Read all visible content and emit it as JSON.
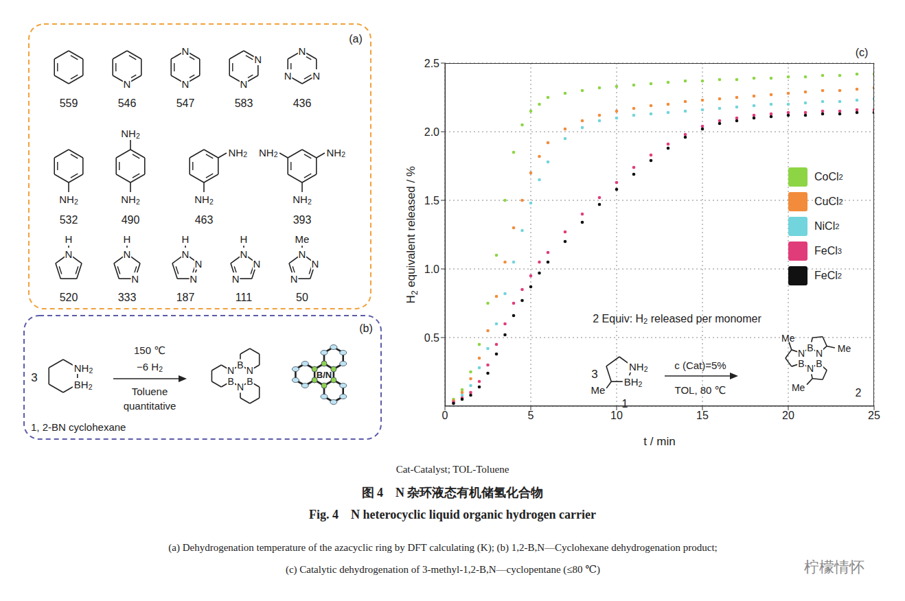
{
  "chart_data": {
    "type": "scatter",
    "x_label": "t / min",
    "y_label": "H2 equivalent released / %",
    "x": [
      0.5,
      1,
      1.5,
      2,
      2.5,
      3,
      3.5,
      4,
      4.5,
      5,
      5.5,
      6,
      7,
      8,
      9,
      10,
      11,
      12,
      13,
      14,
      15,
      16,
      17,
      18,
      19,
      20,
      21,
      22,
      23,
      24,
      25
    ],
    "series": [
      {
        "name": "CoCl2",
        "color": "#8ed545",
        "values": [
          0.05,
          0.12,
          0.25,
          0.45,
          0.75,
          1.1,
          1.5,
          1.85,
          2.05,
          2.15,
          2.2,
          2.25,
          2.28,
          2.3,
          2.32,
          2.33,
          2.34,
          2.35,
          2.36,
          2.37,
          2.37,
          2.38,
          2.38,
          2.39,
          2.39,
          2.4,
          2.4,
          2.41,
          2.41,
          2.42,
          2.42
        ]
      },
      {
        "name": "CuCl2",
        "color": "#f28c3c",
        "values": [
          0.04,
          0.1,
          0.2,
          0.35,
          0.55,
          0.8,
          1.05,
          1.3,
          1.5,
          1.7,
          1.82,
          1.92,
          2.02,
          2.08,
          2.12,
          2.15,
          2.17,
          2.19,
          2.2,
          2.22,
          2.23,
          2.24,
          2.25,
          2.26,
          2.27,
          2.28,
          2.29,
          2.3,
          2.3,
          2.31,
          2.32
        ]
      },
      {
        "name": "NiCl2",
        "color": "#72d4dc",
        "values": [
          0.03,
          0.08,
          0.15,
          0.28,
          0.42,
          0.6,
          0.82,
          1.05,
          1.28,
          1.48,
          1.65,
          1.78,
          1.95,
          2.03,
          2.08,
          2.1,
          2.12,
          2.13,
          2.14,
          2.15,
          2.16,
          2.17,
          2.18,
          2.19,
          2.2,
          2.2,
          2.21,
          2.22,
          2.22,
          2.23,
          2.24
        ]
      },
      {
        "name": "FeCl3",
        "color": "#e03c7a",
        "values": [
          0.03,
          0.06,
          0.1,
          0.18,
          0.3,
          0.45,
          0.6,
          0.75,
          0.85,
          0.95,
          1.05,
          1.12,
          1.27,
          1.4,
          1.52,
          1.63,
          1.74,
          1.83,
          1.91,
          1.98,
          2.04,
          2.08,
          2.1,
          2.12,
          2.13,
          2.14,
          2.14,
          2.15,
          2.15,
          2.16,
          2.16
        ]
      },
      {
        "name": "FeCl2",
        "color": "#111111",
        "values": [
          0.02,
          0.05,
          0.08,
          0.14,
          0.24,
          0.38,
          0.52,
          0.66,
          0.77,
          0.87,
          0.97,
          1.05,
          1.2,
          1.34,
          1.47,
          1.58,
          1.69,
          1.79,
          1.88,
          1.96,
          2.02,
          2.06,
          2.08,
          2.1,
          2.11,
          2.12,
          2.12,
          2.13,
          2.13,
          2.14,
          2.14
        ]
      }
    ],
    "xlim": [
      0,
      25
    ],
    "xticks": [
      0,
      5,
      10,
      15,
      20,
      25
    ],
    "ylim": [
      0,
      2.5
    ],
    "yticks": [
      0.5,
      {
        "value": 1,
        "label": "1.0"
      },
      1.5,
      {
        "value": 2,
        "label": "2.0"
      },
      2.5
    ],
    "grid": true,
    "legend": "right",
    "marker": "circle"
  },
  "panel_a": {
    "label": "(a)",
    "molecules": [
      {
        "atoms": [],
        "substituents": [],
        "value": 559
      },
      {
        "atoms": [
          "N"
        ],
        "substituents": [],
        "value": 546
      },
      {
        "atoms": [
          "N",
          "N"
        ],
        "substituents": [],
        "value": 547
      },
      {
        "atoms": [
          "N",
          "N"
        ],
        "substituents": [],
        "value": 583
      },
      {
        "atoms": [
          "N",
          "N",
          "N"
        ],
        "substituents": [],
        "value": 436
      },
      {
        "atoms": [],
        "substituents": [
          "NH2"
        ],
        "value": 532
      },
      {
        "atoms": [],
        "substituents": [
          "NH2",
          "NH2"
        ],
        "value": 490
      },
      {
        "atoms": [],
        "substituents": [
          "NH2",
          "NH2"
        ],
        "value": 463
      },
      {
        "atoms": [],
        "substituents": [
          "NH2",
          "NH2",
          "NH2"
        ],
        "value": 393
      },
      {
        "atoms": [
          "N"
        ],
        "substituents": [
          "H"
        ],
        "value": 520
      },
      {
        "atoms": [
          "N",
          "N"
        ],
        "substituents": [
          "H"
        ],
        "value": 333
      },
      {
        "atoms": [
          "N",
          "N",
          "N"
        ],
        "substituents": [
          "H"
        ],
        "value": 187
      },
      {
        "atoms": [
          "N",
          "N",
          "N"
        ],
        "substituents": [
          "H"
        ],
        "value": 111
      },
      {
        "atoms": [
          "N",
          "N",
          "N"
        ],
        "substituents": [
          "Me"
        ],
        "value": 50
      }
    ]
  },
  "panel_b": {
    "label": "(b)",
    "coefficient": "3",
    "reactant_atoms": [
      "NH2",
      "BH2"
    ],
    "conditions_above": [
      "150 ℃",
      "−6 H2"
    ],
    "conditions_below": [
      "Toluene",
      "quantitative"
    ],
    "product_atoms": [
      "B",
      "N",
      "B",
      "N",
      "B",
      "N"
    ],
    "crystal_label": "B/N",
    "name": "1, 2-BN cyclohexane"
  },
  "panel_c": {
    "label": "(c)",
    "note": "2 Equiv: H2 released per monomer",
    "coefficient": "3",
    "reactant_atoms": [
      "NH2",
      "BH2"
    ],
    "reactant_substituent": "Me",
    "reactant_number": "1",
    "condition_above": "c (Cat)=5%",
    "condition_below": "TOL, 80 ℃",
    "product_atoms": [
      "B",
      "N",
      "B",
      "N",
      "B",
      "N"
    ],
    "product_substituents": [
      "Me",
      "Me",
      "Me"
    ],
    "product_number": "2"
  },
  "caption": {
    "note": "Cat-Catalyst; TOL-Toluene",
    "title_cn": "图 4　N 杂环液态有机储氢化合物",
    "title_en": "Fig. 4　N heterocyclic liquid organic hydrogen carrier",
    "lines": [
      "(a) Dehydrogenation temperature of the azacyclic ring by DFT calculating (K); (b) 1,2-B,N—Cyclohexane dehydrogenation product;",
      "(c) Catalytic dehydrogenation of 3-methyl-1,2-B,N—cyclopentane (≤80 ℃)"
    ]
  },
  "watermark": "柠檬情怀"
}
